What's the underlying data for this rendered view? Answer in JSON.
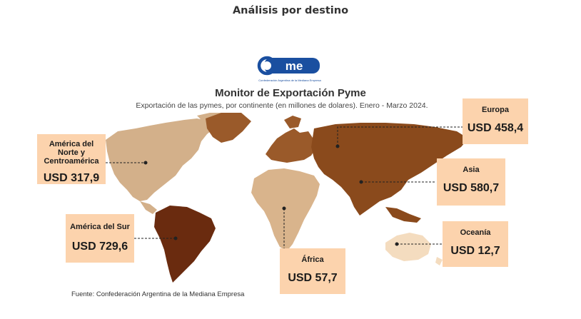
{
  "page": {
    "heading": "Análisis por destino"
  },
  "logo": {
    "text": "came",
    "tagline": "Confederación Argentina de la Mediana Empresa"
  },
  "map": {
    "title": "Monitor de Exportación Pyme",
    "subtitle": "Exportación de las pymes, por continente (en millones de dolares). Enero - Marzo 2024.",
    "source": "Fuente: Confederación Argentina de la Mediana Empresa",
    "regions": [
      {
        "name": "Europa",
        "value": "USD 458,4",
        "color": "#9a5a2a"
      },
      {
        "name": "América del Norte y Centroamérica",
        "value": "USD 317,9",
        "color": "#d3b08a"
      },
      {
        "name": "Asia",
        "value": "USD 580,7",
        "color": "#8a4a1c"
      },
      {
        "name": "América del Sur",
        "value": "USD 729,6",
        "color": "#6a2b0f"
      },
      {
        "name": "Oceanía",
        "value": "USD 12,7",
        "color": "#f4dcbf"
      },
      {
        "name": "África",
        "value": "USD 57,7",
        "color": "#d9b48c"
      }
    ],
    "callout_color": "#fcd3ad",
    "logo_color": "#1a4fa0"
  }
}
